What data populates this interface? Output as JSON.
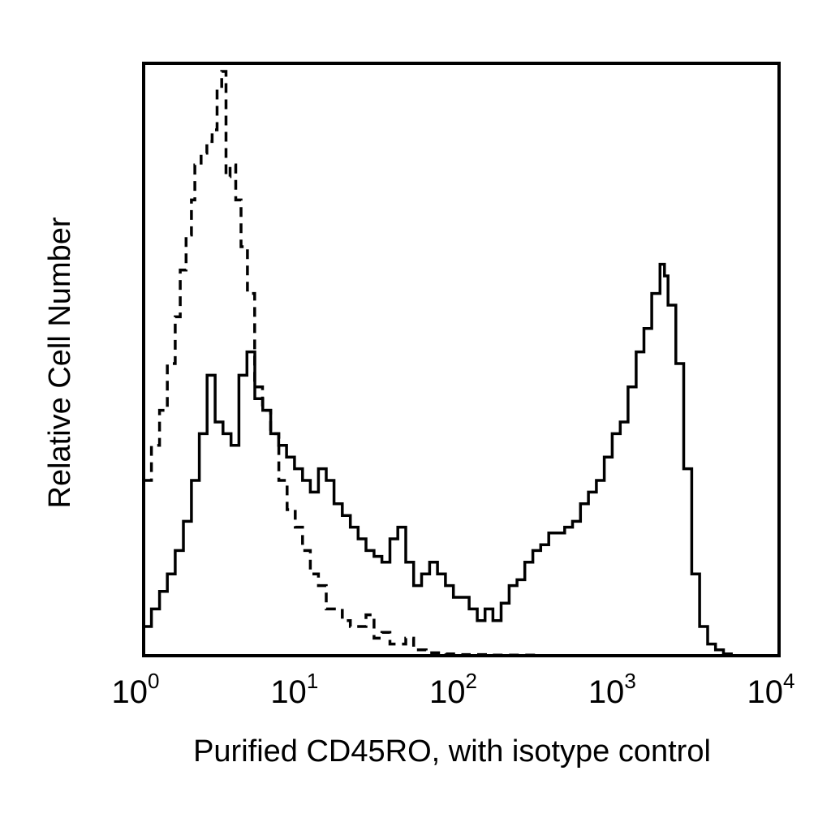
{
  "chart_data": {
    "type": "area",
    "title": "",
    "xlabel": "Purified CD45RO, with isotype control",
    "ylabel": "Relative Cell Number",
    "x_scale": "log",
    "xlim": [
      1,
      10000
    ],
    "ylim": [
      0,
      100
    ],
    "grid": false,
    "legend": "none",
    "x_ticks": [
      {
        "base": "10",
        "exp": "0",
        "value": 1
      },
      {
        "base": "10",
        "exp": "1",
        "value": 10
      },
      {
        "base": "10",
        "exp": "2",
        "value": 100
      },
      {
        "base": "10",
        "exp": "3",
        "value": 1000
      },
      {
        "base": "10",
        "exp": "4",
        "value": 10000
      }
    ],
    "series": [
      {
        "style": "dashed",
        "color": "#000000",
        "x": [
          1.0,
          1.12,
          1.26,
          1.41,
          1.58,
          1.7,
          1.85,
          2.0,
          2.1,
          2.3,
          2.5,
          2.7,
          2.9,
          3.1,
          3.3,
          3.5,
          3.8,
          4.1,
          4.5,
          5.0,
          5.6,
          6.3,
          7.1,
          8.0,
          9.0,
          10.0,
          11.2,
          12.6,
          14.1,
          15.8,
          17.8,
          20.0,
          22.4,
          25.1,
          28.2,
          31.6,
          35.5,
          39.8,
          44.7,
          50.1,
          60.0,
          80.0,
          100.0,
          150.0,
          200.0,
          300.0
        ],
        "y": [
          30,
          36,
          42,
          50,
          58,
          66,
          72,
          78,
          84,
          86,
          88,
          90,
          97,
          100,
          82,
          84,
          78,
          70,
          62,
          46,
          42,
          38,
          30,
          25,
          22,
          18,
          14,
          12,
          8,
          8,
          6,
          5,
          5,
          7,
          3,
          4,
          2,
          2,
          3,
          1,
          0.5,
          0.3,
          0.2,
          0.1,
          0.1,
          0
        ]
      },
      {
        "style": "solid",
        "color": "#000000",
        "x": [
          1.0,
          1.12,
          1.26,
          1.41,
          1.58,
          1.78,
          2.0,
          2.24,
          2.51,
          2.82,
          3.16,
          3.55,
          3.98,
          4.47,
          5.01,
          5.62,
          6.31,
          7.08,
          7.94,
          8.91,
          10.0,
          11.2,
          12.6,
          14.1,
          15.8,
          17.8,
          20.0,
          22.4,
          25.1,
          28.2,
          31.6,
          35.5,
          39.8,
          44.7,
          50.1,
          56.2,
          63.1,
          70.8,
          79.4,
          89.1,
          100,
          112,
          126,
          141,
          158,
          178,
          200,
          224,
          251,
          282,
          316,
          355,
          398,
          447,
          501,
          562,
          631,
          708,
          794,
          891,
          1000,
          1120,
          1260,
          1410,
          1580,
          1780,
          1900,
          2000,
          2240,
          2510,
          2820,
          3160,
          3550,
          3980,
          4470,
          5010
        ],
        "y": [
          5,
          8,
          11,
          14,
          18,
          23,
          30,
          38,
          48,
          40,
          38,
          36,
          48,
          52,
          44,
          42,
          38,
          36,
          34,
          32,
          30,
          28,
          32,
          30,
          26,
          24,
          22,
          20,
          18,
          17,
          16,
          20,
          22,
          16,
          12,
          14,
          16,
          14,
          12,
          10,
          10,
          8,
          6,
          8,
          6,
          9,
          12,
          13,
          16,
          18,
          19,
          21,
          21,
          22,
          23,
          26,
          28,
          30,
          34,
          38,
          40,
          46,
          52,
          56,
          62,
          67,
          65,
          60,
          50,
          32,
          14,
          5,
          2,
          1,
          0.3,
          0
        ]
      }
    ]
  }
}
